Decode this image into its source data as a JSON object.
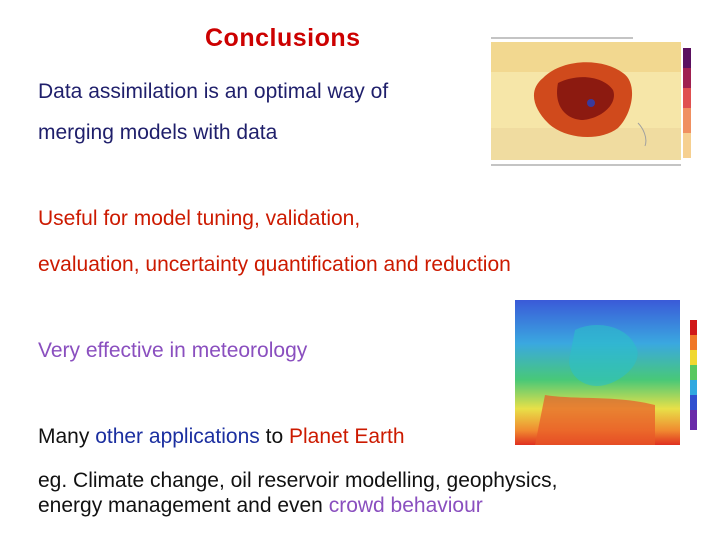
{
  "slide": {
    "title": "Conclusions",
    "line1a": "Data assimilation is an optimal way of",
    "line1b": "merging models with data",
    "line2a": "Useful for model tuning, validation,",
    "line2b": "evaluation, uncertainty quantification and reduction",
    "line3": "Very effective in meteorology",
    "line4_pre": "Many ",
    "line4_other": "other applications",
    "line4_mid": " to ",
    "line4_planet": "Planet Earth",
    "line5a": "eg. Climate change, oil reservoir modelling, geophysics,",
    "line5b_pre": "energy management and even ",
    "line5b_crowd": "crowd behaviour"
  },
  "colors": {
    "title": "#cc0000",
    "dark_text": "#1f1f6b",
    "red_text": "#cc1a00",
    "purple_text": "#8a4fbf",
    "blue_text": "#1b2fa0"
  },
  "images": {
    "map1": "australia-temperature-map",
    "map2": "europe-temperature-map"
  }
}
